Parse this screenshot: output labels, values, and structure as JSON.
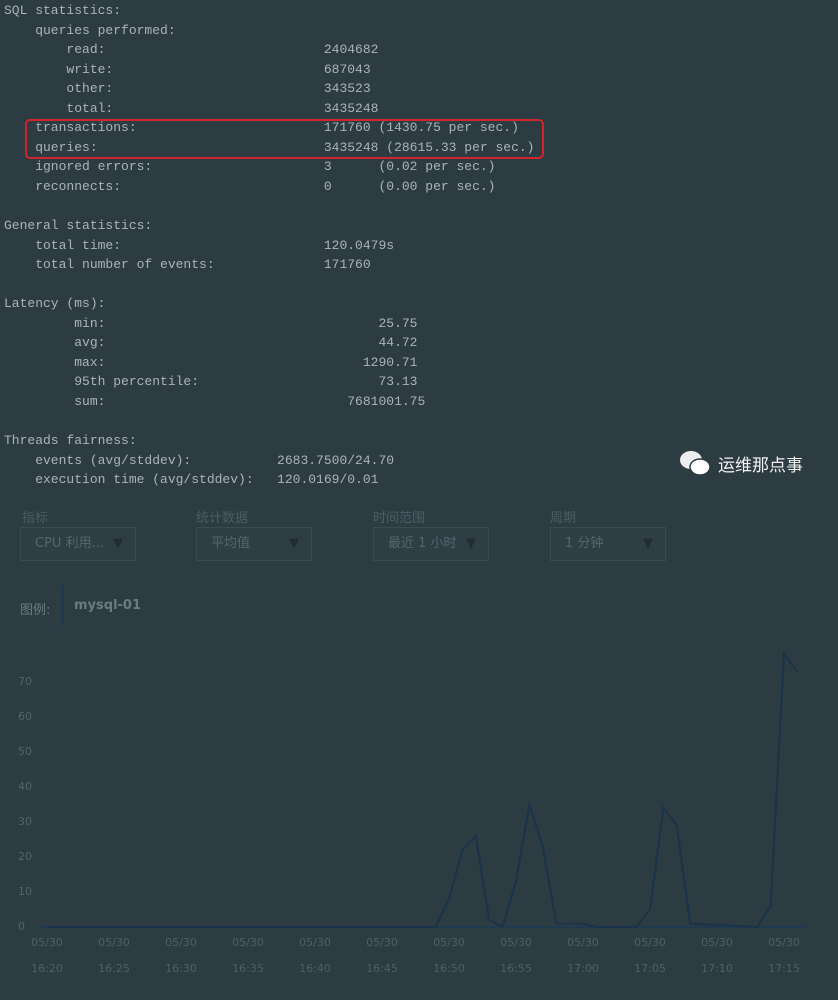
{
  "controls": {
    "metric_label": "指标",
    "stat_label": "统计数据",
    "range_label": "时间范围",
    "period_label": "周期",
    "metric_value": "CPU 利用...",
    "stat_value": "平均值",
    "range_value": "最近 1 小时",
    "period_value": "1 分钟",
    "legend_label": "图例:",
    "legend_series": "mysql-01",
    "series_color": "#1f3a4f"
  },
  "chart_data": {
    "type": "line",
    "ylim": [
      0,
      80
    ],
    "yticks": [
      "0",
      "10",
      "20",
      "30",
      "40",
      "50",
      "60",
      "70"
    ],
    "xtick_dates": [
      "05/30",
      "05/30",
      "05/30",
      "05/30",
      "05/30",
      "05/30",
      "05/30",
      "05/30",
      "05/30",
      "05/30",
      "05/30",
      "05/30"
    ],
    "xtick_times": [
      "16:20",
      "16:25",
      "16:30",
      "16:35",
      "16:40",
      "16:45",
      "16:50",
      "16:55",
      "17:00",
      "17:05",
      "17:10",
      "17:15"
    ],
    "grid": false,
    "series": [
      {
        "name": "mysql-01",
        "x": [
          "16:20",
          "16:49",
          "16:50",
          "16:51",
          "16:52",
          "16:53",
          "16:54",
          "16:55",
          "16:56",
          "16:57",
          "16:58",
          "16:59",
          "17:00",
          "17:01",
          "17:04",
          "17:05",
          "17:06",
          "17:07",
          "17:08",
          "17:13",
          "17:14",
          "17:15",
          "17:16"
        ],
        "values": [
          0,
          0,
          8,
          22,
          26,
          2,
          0,
          13,
          35,
          23,
          1,
          1,
          1,
          0,
          0,
          5,
          34,
          29,
          1,
          0,
          6,
          78,
          73
        ]
      }
    ]
  },
  "terminal": {
    "lines": [
      "SQL statistics:",
      "    queries performed:",
      "        read:                            2404682",
      "        write:                           687043",
      "        other:                           343523",
      "        total:                           3435248",
      "    transactions:                        171760 (1430.75 per sec.)",
      "    queries:                             3435248 (28615.33 per sec.)",
      "    ignored errors:                      3      (0.02 per sec.)",
      "    reconnects:                          0      (0.00 per sec.)",
      "",
      "General statistics:",
      "    total time:                          120.0479s",
      "    total number of events:              171760",
      "",
      "Latency (ms):",
      "         min:                                   25.75",
      "         avg:                                   44.72",
      "         max:                                 1290.71",
      "         95th percentile:                       73.13",
      "         sum:                               7681001.75",
      "",
      "Threads fairness:",
      "    events (avg/stddev):           2683.7500/24.70",
      "    execution time (avg/stddev):   120.0169/0.01"
    ]
  },
  "watermark": "运维那点事"
}
